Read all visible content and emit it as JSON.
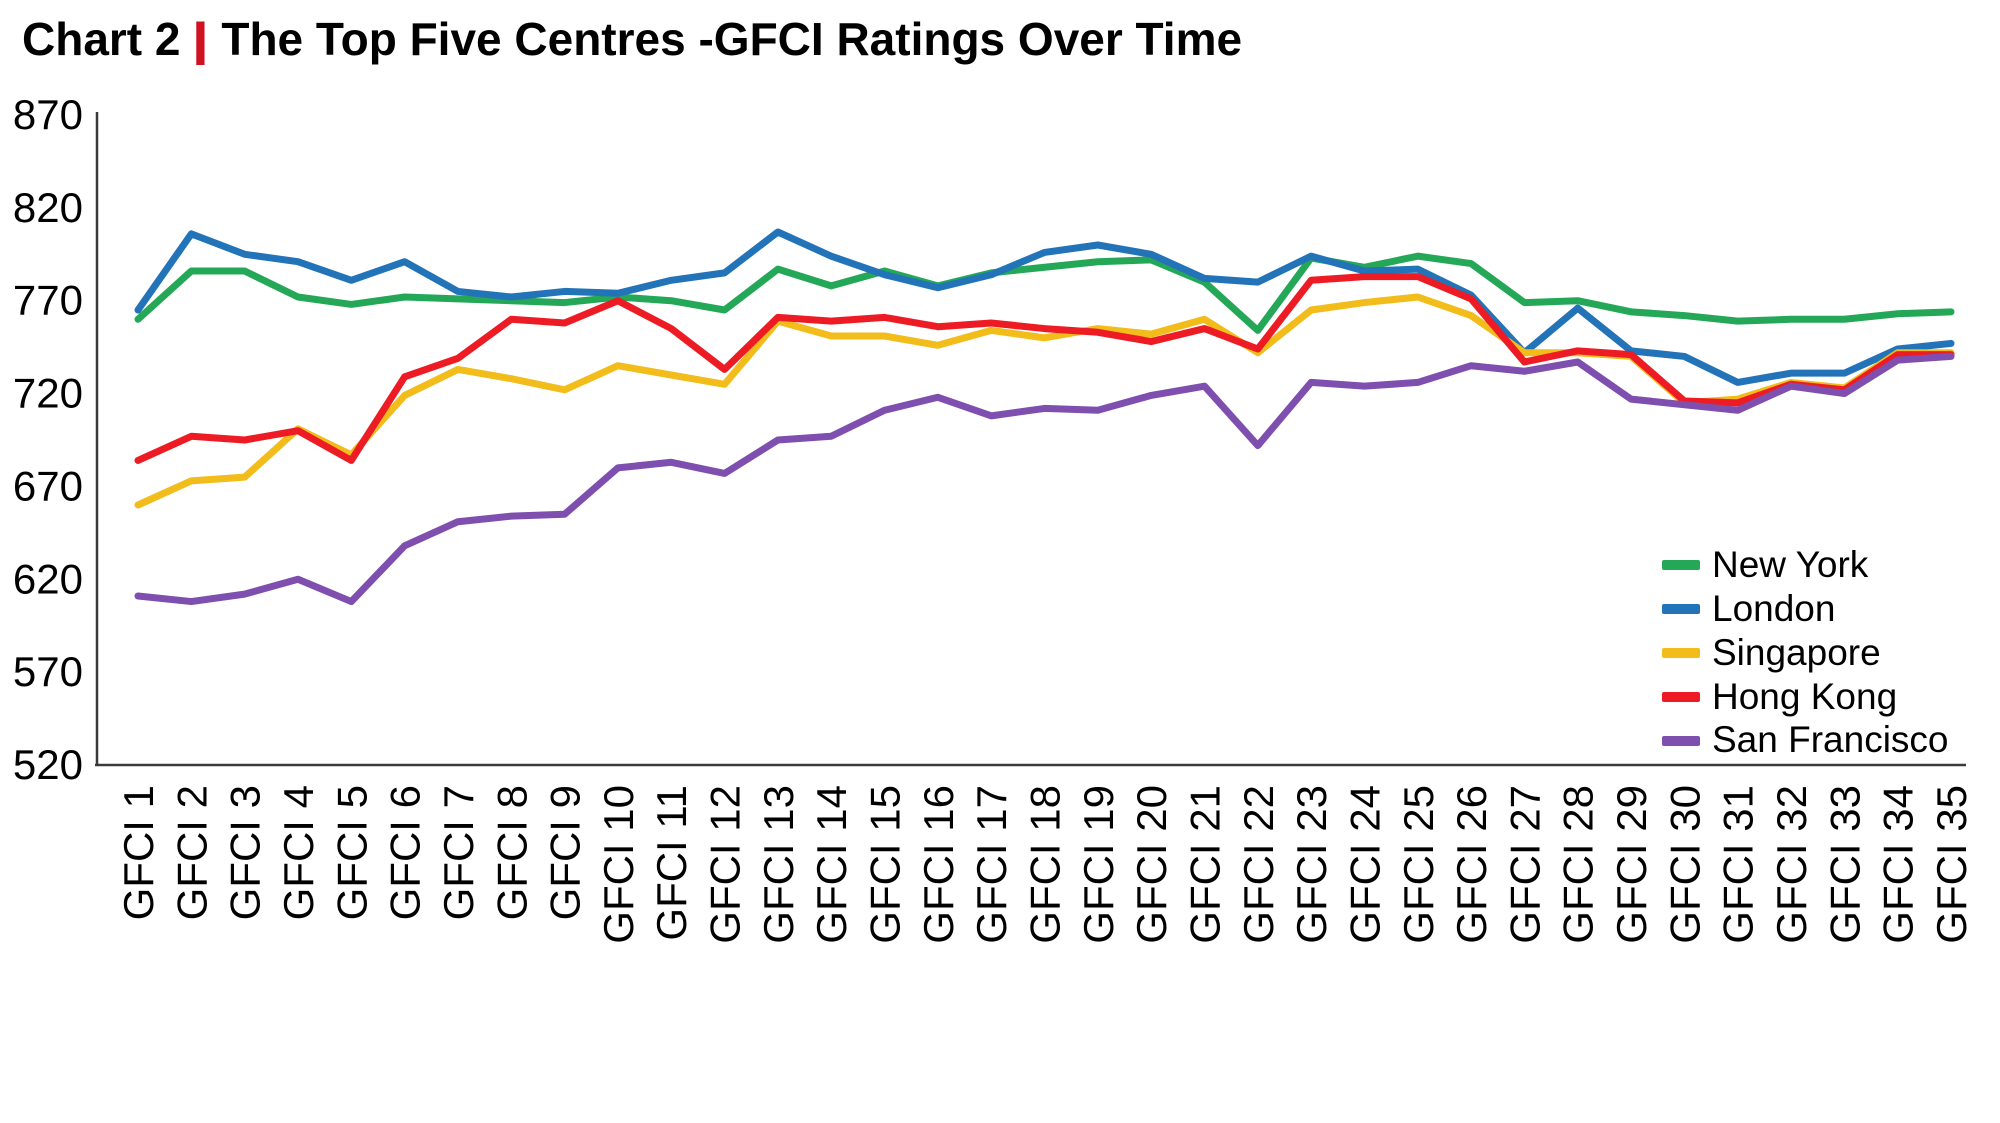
{
  "title": {
    "prefix": "Chart 2",
    "separator": "|",
    "separator_color": "#D01220",
    "text": "The Top Five Centres -GFCI Ratings Over Time"
  },
  "chart_data": {
    "type": "line",
    "title": "Chart 2 | The Top Five Centres -GFCI Ratings Over Time",
    "xlabel": "",
    "ylabel": "",
    "ylim": [
      520,
      870
    ],
    "y_ticks": [
      870,
      820,
      770,
      720,
      670,
      620,
      570,
      520
    ],
    "grid": false,
    "legend_position": "bottom-right-inside",
    "x_labels": [
      "GFCI 1",
      "GFCI 2",
      "GFCI 3",
      "GFCI 4",
      "GFCI 5",
      "GFCI 6",
      "GFCI 7",
      "GFCI 8",
      "GFCI 9",
      "GFCI 10",
      "GFCI 11",
      "GFCI 12",
      "GFCI 13",
      "GFCI 14",
      "GFCI 15",
      "GFCI 16",
      "GFCI 17",
      "GFCI 18",
      "GFCI 19",
      "GFCI 20",
      "GFCI 21",
      "GFCI 22",
      "GFCI 23",
      "GFCI 24",
      "GFCI 25",
      "GFCI 26",
      "GFCI 27",
      "GFCI 28",
      "GFCI 29",
      "GFCI 30",
      "GFCI 31",
      "GFCI 32",
      "GFCI 33",
      "GFCI 34",
      "GFCI 35"
    ],
    "series": [
      {
        "name": "New York",
        "color": "#24A858",
        "values": [
          760,
          786,
          786,
          772,
          768,
          772,
          771,
          770,
          769,
          772,
          770,
          765,
          787,
          778,
          786,
          778,
          785,
          788,
          791,
          792,
          780,
          754,
          793,
          788,
          794,
          790,
          769,
          770,
          764,
          762,
          759,
          760,
          760,
          763,
          764
        ]
      },
      {
        "name": "London",
        "color": "#2273B8",
        "values": [
          765,
          806,
          795,
          791,
          781,
          791,
          775,
          772,
          775,
          774,
          781,
          785,
          807,
          794,
          784,
          777,
          784,
          796,
          800,
          795,
          782,
          780,
          794,
          786,
          787,
          773,
          742,
          766,
          743,
          740,
          726,
          731,
          731,
          744,
          747
        ]
      },
      {
        "name": "Singapore",
        "color": "#F2BC1B",
        "values": [
          660,
          673,
          675,
          701,
          687,
          719,
          733,
          728,
          722,
          735,
          730,
          725,
          759,
          751,
          751,
          746,
          754,
          750,
          755,
          752,
          760,
          742,
          765,
          769,
          772,
          762,
          742,
          742,
          740,
          715,
          717,
          726,
          723,
          742,
          742
        ]
      },
      {
        "name": "Hong Kong",
        "color": "#ED1C24",
        "values": [
          684,
          697,
          695,
          700,
          684,
          729,
          739,
          760,
          758,
          770,
          755,
          733,
          761,
          759,
          761,
          756,
          758,
          755,
          753,
          748,
          755,
          744,
          781,
          783,
          783,
          771,
          737,
          743,
          741,
          716,
          715,
          725,
          722,
          741,
          741
        ]
      },
      {
        "name": "San Francisco",
        "color": "#7E4FAE",
        "values": [
          611,
          608,
          612,
          620,
          608,
          638,
          651,
          654,
          655,
          680,
          683,
          677,
          695,
          697,
          711,
          718,
          708,
          712,
          711,
          719,
          724,
          692,
          726,
          724,
          726,
          735,
          732,
          737,
          717,
          714,
          711,
          724,
          720,
          738,
          740
        ]
      }
    ]
  }
}
